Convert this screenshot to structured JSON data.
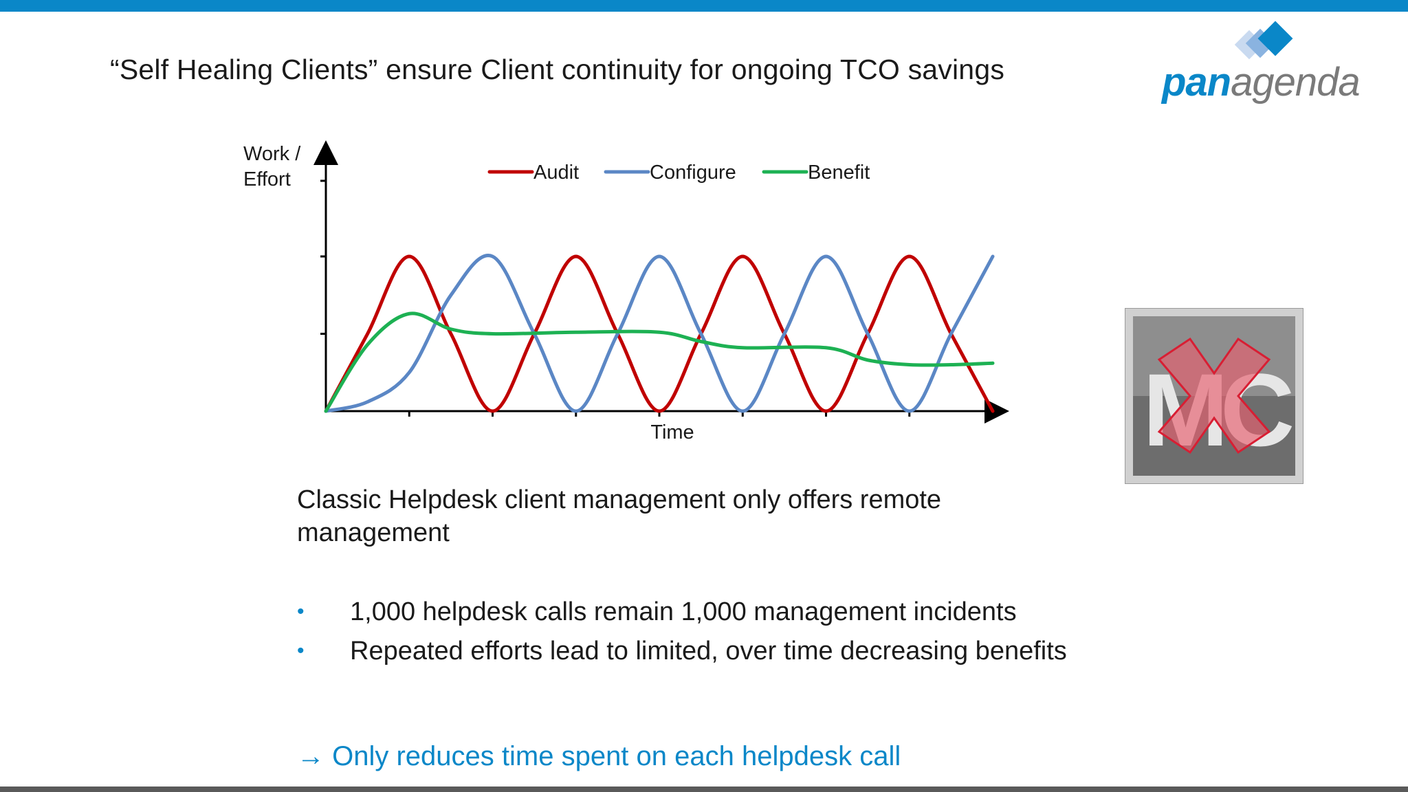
{
  "slide": {
    "title": "“Self Healing Clients” ensure Client continuity for ongoing TCO savings",
    "logo": {
      "pan": "pan",
      "agenda": "agenda"
    },
    "body": "Classic Helpdesk client management only offers remote management",
    "bullets": [
      "1,000 helpdesk calls remain 1,000 management incidents",
      "Repeated efforts lead to limited, over time decreasing benefits"
    ],
    "bullet_marker": "•",
    "conclusion": "→ Only reduces time spent on each helpdesk call",
    "icon": {
      "name": "mc-crossed-out-icon",
      "letters": "MC"
    }
  },
  "colors": {
    "accent": "#0a87c8",
    "audit": "#c00000",
    "configure": "#5b87c5",
    "benefit": "#1db153"
  },
  "chart_data": {
    "type": "line",
    "xlabel": "Time",
    "ylabel": "Work / Effort",
    "xlim": [
      0,
      8
    ],
    "ylim": [
      0,
      10
    ],
    "legend_position": "top",
    "grid": false,
    "series": [
      {
        "name": "Audit",
        "color": "#c00000",
        "x": [
          0,
          0.5,
          1,
          1.5,
          2,
          2.5,
          3,
          3.5,
          4,
          4.5,
          5,
          5.5,
          6,
          6.5,
          7,
          7.5,
          8
        ],
        "y": [
          0,
          5,
          10,
          5,
          0,
          5,
          10,
          5,
          0,
          5,
          10,
          5,
          0,
          5,
          10,
          5,
          0
        ]
      },
      {
        "name": "Configure",
        "color": "#5b87c5",
        "x": [
          0,
          0.5,
          1,
          1.5,
          2,
          2.5,
          3,
          3.5,
          4,
          4.5,
          5,
          5.5,
          6,
          6.5,
          7,
          7.5,
          8
        ],
        "y": [
          0,
          0.6,
          2.5,
          7.5,
          10,
          5,
          0,
          5,
          10,
          5,
          0,
          5,
          10,
          5,
          0,
          5,
          10
        ]
      },
      {
        "name": "Benefit",
        "color": "#1db153",
        "x": [
          0,
          0.5,
          1,
          1.5,
          2,
          3,
          4,
          4.5,
          5,
          6,
          6.5,
          7,
          7.5,
          8
        ],
        "y": [
          0,
          4.3,
          6.3,
          5.3,
          5.0,
          5.1,
          5.1,
          4.5,
          4.1,
          4.1,
          3.3,
          3.0,
          3.0,
          3.1
        ]
      }
    ]
  }
}
